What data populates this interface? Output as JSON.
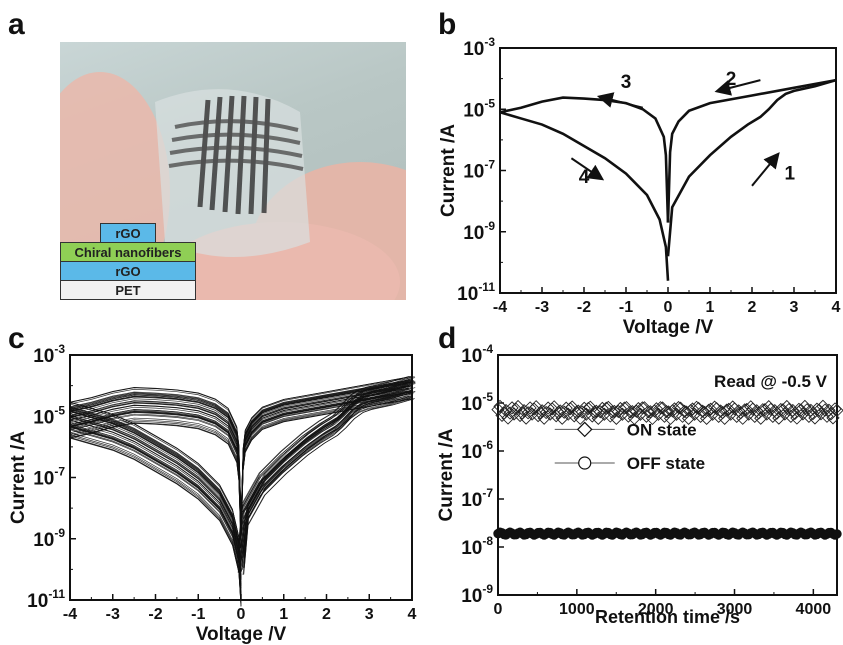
{
  "panels": {
    "a": "a",
    "b": "b",
    "c": "c",
    "d": "d"
  },
  "layers": [
    "rGO",
    "Chiral nanofibers",
    "rGO",
    "PET"
  ],
  "colors": {
    "rgo": "#5bb9e8",
    "nanofiber": "#8fcf55",
    "pet": "#f2f2f2",
    "line": "#111111"
  },
  "chart_data": [
    {
      "type": "line",
      "panel": "b",
      "xlabel": "Voltage /V",
      "ylabel": "Current /A",
      "xlim": [
        -4,
        4
      ],
      "ylog": true,
      "ylim_exp": [
        -11,
        -3
      ],
      "xticks": [
        "-4",
        "-3",
        "-2",
        "-1",
        "0",
        "1",
        "2",
        "3",
        "4"
      ],
      "yticks": [
        {
          "base": "10",
          "exp": "-3"
        },
        {
          "base": "10",
          "exp": "-5"
        },
        {
          "base": "10",
          "exp": "-7"
        },
        {
          "base": "10",
          "exp": "-9"
        },
        {
          "base": "10",
          "exp": "-11"
        }
      ],
      "series": [
        {
          "x": [
            0,
            0.1,
            0.5,
            1.0,
            1.5,
            1.9,
            2.2,
            2.4,
            2.6,
            2.8,
            3.0,
            3.5,
            4.0
          ],
          "y": [
            -9.8,
            -8.2,
            -7.2,
            -6.5,
            -5.9,
            -5.5,
            -5.25,
            -5.0,
            -4.7,
            -4.5,
            -4.4,
            -4.25,
            -4.05
          ]
        },
        {
          "x": [
            4.0,
            3.0,
            2.0,
            1.0,
            0.5,
            0.25,
            0.1,
            0.05,
            0
          ],
          "y": [
            -4.05,
            -4.3,
            -4.55,
            -4.8,
            -5.05,
            -5.4,
            -5.8,
            -6.4,
            -8.7
          ]
        },
        {
          "x": [
            0,
            -0.05,
            -0.1,
            -0.3,
            -0.6,
            -1.0,
            -1.5,
            -2.0,
            -2.5,
            -3.0,
            -3.5,
            -4.0
          ],
          "y": [
            -8.7,
            -6.5,
            -5.9,
            -5.3,
            -5.0,
            -4.8,
            -4.7,
            -4.65,
            -4.62,
            -4.75,
            -4.95,
            -5.1
          ]
        },
        {
          "x": [
            -4.0,
            -3.5,
            -3.0,
            -2.5,
            -2.0,
            -1.5,
            -1.0,
            -0.5,
            -0.2,
            -0.05,
            0
          ],
          "y": [
            -5.1,
            -5.3,
            -5.5,
            -5.8,
            -6.2,
            -6.6,
            -7.1,
            -7.8,
            -8.6,
            -9.5,
            -10.6
          ]
        }
      ],
      "annotations": [
        {
          "text": "1",
          "x": 2.9,
          "y": -7.3
        },
        {
          "text": "2",
          "x": 1.5,
          "y": -4.2
        },
        {
          "text": "3",
          "x": -1.0,
          "y": -4.3
        },
        {
          "text": "4",
          "x": -2.0,
          "y": -7.4
        }
      ],
      "arrows": [
        {
          "x1": 2.0,
          "y1": -7.5,
          "x2": 2.6,
          "y2": -6.5
        },
        {
          "x1": 2.2,
          "y1": -4.05,
          "x2": 1.2,
          "y2": -4.4
        },
        {
          "x1": -0.6,
          "y1": -4.95,
          "x2": -1.6,
          "y2": -4.6
        },
        {
          "x1": -2.3,
          "y1": -6.6,
          "x2": -1.6,
          "y2": -7.25
        }
      ]
    },
    {
      "type": "line",
      "panel": "c",
      "xlabel": "Voltage /V",
      "ylabel": "Current /A",
      "xlim": [
        -4,
        4
      ],
      "ylog": true,
      "ylim_exp": [
        -11,
        -3
      ],
      "xticks": [
        "-4",
        "-3",
        "-2",
        "-1",
        "0",
        "1",
        "2",
        "3",
        "4"
      ],
      "yticks": [
        {
          "base": "10",
          "exp": "-3"
        },
        {
          "base": "10",
          "exp": "-5"
        },
        {
          "base": "10",
          "exp": "-7"
        },
        {
          "base": "10",
          "exp": "-9"
        },
        {
          "base": "10",
          "exp": "-11"
        }
      ],
      "cycles": 40,
      "series": [
        {
          "x": [
            0,
            0.1,
            0.5,
            1.0,
            1.5,
            1.9,
            2.2,
            2.4,
            2.6,
            2.8,
            3.0,
            3.5,
            4.0
          ],
          "y": [
            -9.8,
            -8.2,
            -7.2,
            -6.5,
            -5.9,
            -5.5,
            -5.25,
            -5.0,
            -4.7,
            -4.5,
            -4.4,
            -4.25,
            -4.05
          ]
        },
        {
          "x": [
            4.0,
            3.0,
            2.0,
            1.0,
            0.5,
            0.25,
            0.1,
            0.05,
            0
          ],
          "y": [
            -4.05,
            -4.3,
            -4.55,
            -4.8,
            -5.05,
            -5.4,
            -5.8,
            -6.4,
            -8.7
          ]
        },
        {
          "x": [
            0,
            -0.05,
            -0.1,
            -0.3,
            -0.6,
            -1.0,
            -1.5,
            -2.0,
            -2.5,
            -3.0,
            -3.5,
            -4.0
          ],
          "y": [
            -8.7,
            -6.5,
            -5.9,
            -5.3,
            -5.0,
            -4.8,
            -4.7,
            -4.65,
            -4.62,
            -4.75,
            -4.95,
            -5.1
          ]
        },
        {
          "x": [
            -4.0,
            -3.5,
            -3.0,
            -2.5,
            -2.0,
            -1.5,
            -1.0,
            -0.5,
            -0.2,
            -0.05,
            0
          ],
          "y": [
            -5.1,
            -5.3,
            -5.5,
            -5.8,
            -6.2,
            -6.6,
            -7.1,
            -7.8,
            -8.6,
            -9.5,
            -10.6
          ]
        }
      ]
    },
    {
      "type": "scatter",
      "panel": "d",
      "xlabel": "Retention time /s",
      "ylabel": "Current /A",
      "xlim": [
        0,
        4300
      ],
      "ylog": true,
      "ylim_exp": [
        -9,
        -4
      ],
      "xticks": [
        {
          "label": "0",
          "v": 0
        },
        {
          "label": "1000",
          "v": 1000
        },
        {
          "label": "2000",
          "v": 2000
        },
        {
          "label": "3000",
          "v": 3000
        },
        {
          "label": "4000",
          "v": 4000
        }
      ],
      "yticks": [
        {
          "base": "10",
          "exp": "-4"
        },
        {
          "base": "10",
          "exp": "-5"
        },
        {
          "base": "10",
          "exp": "-6"
        },
        {
          "base": "10",
          "exp": "-7"
        },
        {
          "base": "10",
          "exp": "-8"
        },
        {
          "base": "10",
          "exp": "-9"
        }
      ],
      "annotation": "Read @ -0.5 V",
      "series": [
        {
          "name": "ON state",
          "marker": "diamond",
          "value": 6.5e-06
        },
        {
          "name": "OFF state",
          "marker": "circle",
          "value": 1.9e-08
        }
      ]
    }
  ]
}
